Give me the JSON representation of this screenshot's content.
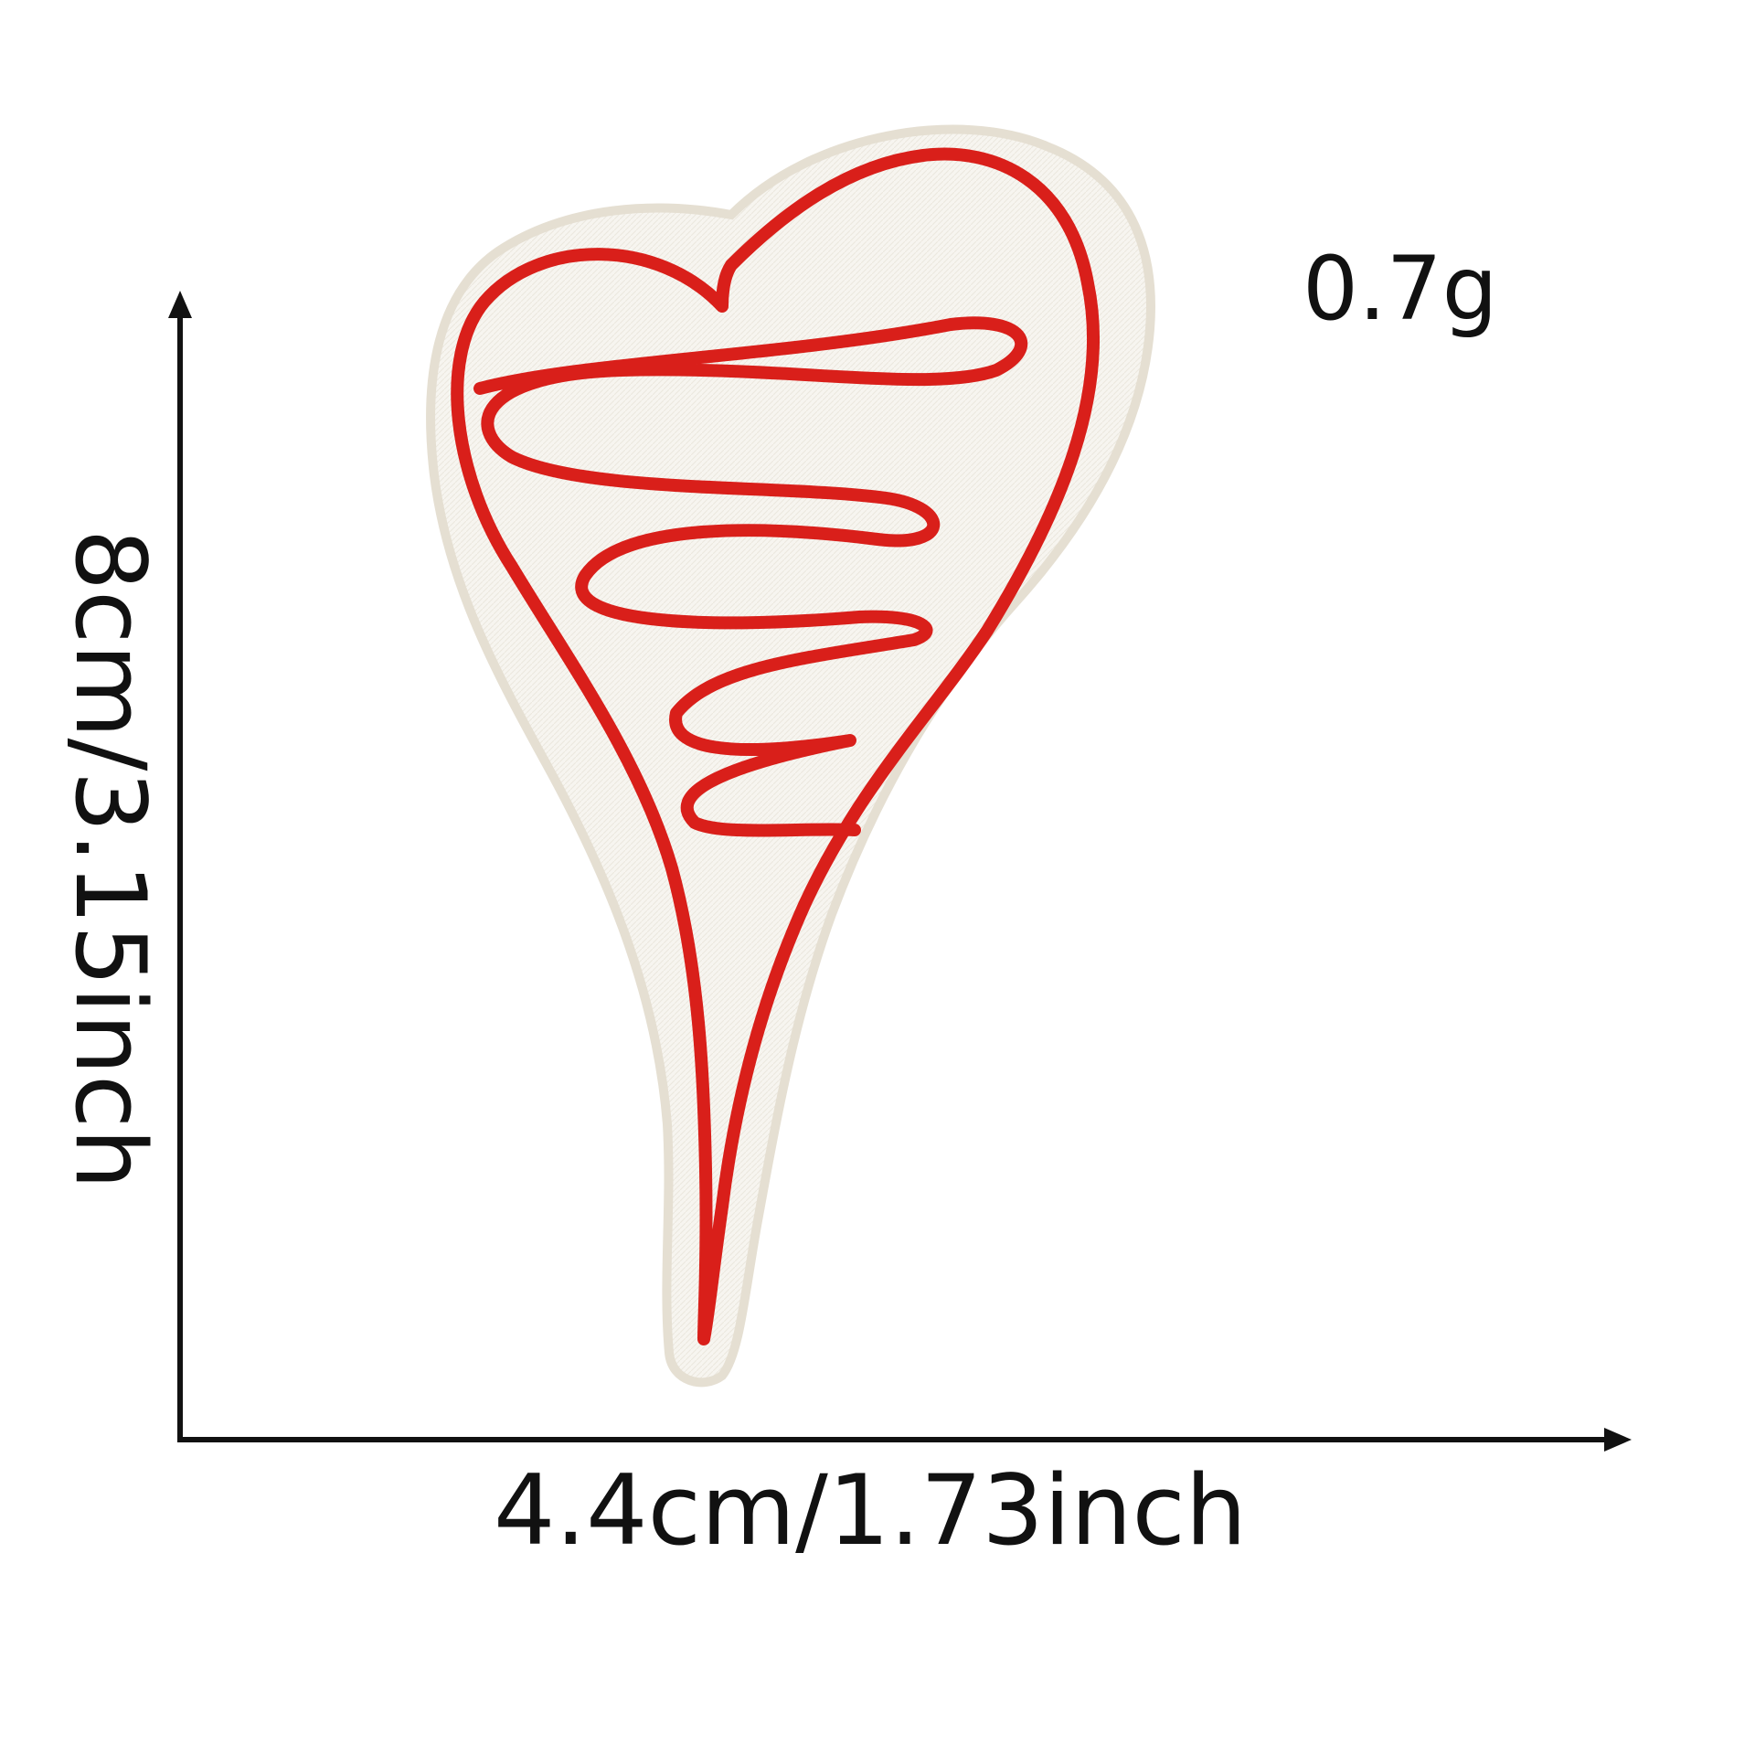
{
  "product": {
    "weight": "0.7g",
    "width_dimension": "4.4cm/1.73inch",
    "height_dimension": "8cm/3.15inch"
  },
  "illustration": {
    "subject": "embroidered heart patch",
    "fabric_color": "#f6f4ef",
    "edge_color": "#e8e2d6",
    "thread_color": "#d91f1a"
  },
  "icons": {
    "vertical_arrow": "arrow-up-icon",
    "horizontal_arrow": "arrow-right-icon"
  }
}
